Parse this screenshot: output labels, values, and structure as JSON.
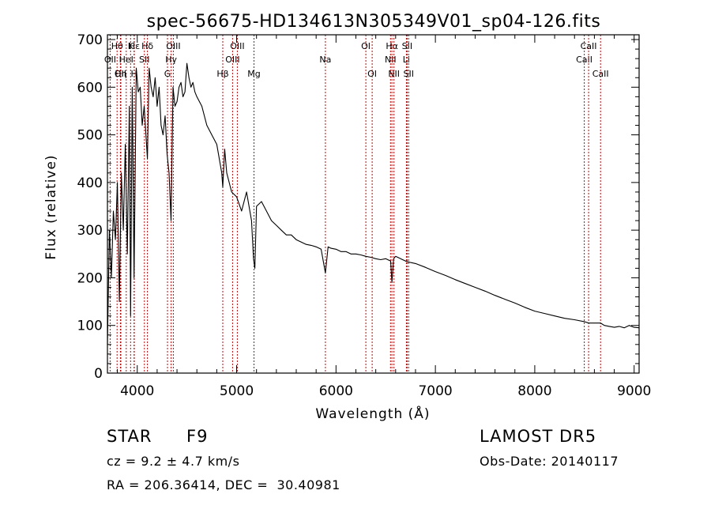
{
  "chart_data": {
    "type": "line",
    "title": "spec-56675-HD134613N305349V01_sp04-126.fits",
    "xlabel": "Wavelength (Å)",
    "ylabel": "Flux (relative)",
    "xlim": [
      3700,
      9050
    ],
    "ylim": [
      0,
      710
    ],
    "xticks": [
      4000,
      5000,
      6000,
      7000,
      8000,
      9000
    ],
    "yticks": [
      0,
      100,
      200,
      300,
      400,
      500,
      600,
      700
    ],
    "grid": false,
    "line_color": "#000000",
    "marker_color": "#cc0000",
    "spectrum": {
      "x": [
        3700,
        3720,
        3740,
        3760,
        3780,
        3800,
        3820,
        3840,
        3860,
        3880,
        3900,
        3920,
        3933,
        3950,
        3968,
        3990,
        4010,
        4030,
        4050,
        4070,
        4102,
        4120,
        4140,
        4160,
        4180,
        4200,
        4220,
        4240,
        4260,
        4280,
        4300,
        4320,
        4340,
        4360,
        4380,
        4400,
        4420,
        4440,
        4460,
        4480,
        4500,
        4520,
        4540,
        4560,
        4580,
        4600,
        4650,
        4700,
        4750,
        4800,
        4850,
        4861,
        4880,
        4900,
        4950,
        5000,
        5050,
        5100,
        5150,
        5170,
        5183,
        5200,
        5250,
        5300,
        5350,
        5400,
        5450,
        5500,
        5550,
        5600,
        5650,
        5700,
        5750,
        5800,
        5850,
        5893,
        5920,
        5950,
        6000,
        6050,
        6100,
        6150,
        6200,
        6250,
        6300,
        6350,
        6400,
        6450,
        6500,
        6550,
        6563,
        6580,
        6600,
        6650,
        6700,
        6750,
        6800,
        6900,
        7000,
        7100,
        7200,
        7300,
        7400,
        7500,
        7600,
        7700,
        7800,
        7900,
        8000,
        8100,
        8200,
        8300,
        8400,
        8498,
        8542,
        8600,
        8662,
        8700,
        8750,
        8800,
        8850,
        8900,
        8950,
        9000,
        9050
      ],
      "y": [
        60,
        300,
        200,
        340,
        280,
        400,
        150,
        420,
        300,
        480,
        250,
        560,
        120,
        600,
        200,
        640,
        590,
        600,
        520,
        560,
        450,
        640,
        600,
        580,
        620,
        560,
        600,
        520,
        500,
        540,
        460,
        420,
        320,
        600,
        560,
        570,
        600,
        610,
        580,
        590,
        650,
        620,
        600,
        610,
        590,
        580,
        560,
        520,
        500,
        480,
        420,
        390,
        470,
        420,
        380,
        370,
        340,
        380,
        320,
        240,
        220,
        350,
        360,
        340,
        320,
        310,
        300,
        290,
        290,
        280,
        275,
        270,
        268,
        265,
        260,
        210,
        265,
        262,
        260,
        255,
        255,
        250,
        250,
        248,
        245,
        243,
        240,
        238,
        240,
        235,
        190,
        240,
        245,
        240,
        235,
        232,
        230,
        222,
        213,
        205,
        196,
        188,
        180,
        172,
        163,
        155,
        147,
        138,
        130,
        125,
        120,
        115,
        112,
        108,
        105,
        105,
        105,
        100,
        98,
        96,
        98,
        95,
        100,
        96,
        95
      ]
    },
    "lines": [
      {
        "name": "OII",
        "x": 3727,
        "row": 2
      },
      {
        "name": "Hθ",
        "x": 3797,
        "row": 1
      },
      {
        "name": "OII",
        "x": 3830,
        "row": 3
      },
      {
        "name": "Hη",
        "x": 3835,
        "row": 3
      },
      {
        "name": "HeI",
        "x": 3889,
        "row": 2
      },
      {
        "name": "K",
        "x": 3933,
        "row": 1
      },
      {
        "name": "H",
        "x": 3968,
        "row": 3
      },
      {
        "name": "Hε",
        "x": 3970,
        "row": 1
      },
      {
        "name": "SII",
        "x": 4072,
        "row": 2
      },
      {
        "name": "Hδ",
        "x": 4102,
        "row": 1
      },
      {
        "name": "G",
        "x": 4304,
        "row": 3
      },
      {
        "name": "Hγ",
        "x": 4341,
        "row": 2
      },
      {
        "name": "OIII",
        "x": 4363,
        "row": 1
      },
      {
        "name": "Hβ",
        "x": 4861,
        "row": 3
      },
      {
        "name": "OIII",
        "x": 4959,
        "row": 2
      },
      {
        "name": "OIII",
        "x": 5007,
        "row": 1
      },
      {
        "name": "Mg",
        "x": 5175,
        "row": 3
      },
      {
        "name": "Na",
        "x": 5893,
        "row": 2
      },
      {
        "name": "OI",
        "x": 6300,
        "row": 1
      },
      {
        "name": "OI",
        "x": 6364,
        "row": 3
      },
      {
        "name": "NII",
        "x": 6548,
        "row": 2
      },
      {
        "name": "Hα",
        "x": 6563,
        "row": 1
      },
      {
        "name": "NII",
        "x": 6583,
        "row": 3
      },
      {
        "name": "Li",
        "x": 6708,
        "row": 2
      },
      {
        "name": "SII",
        "x": 6716,
        "row": 1
      },
      {
        "name": "SII",
        "x": 6731,
        "row": 3
      },
      {
        "name": "CaII",
        "x": 8498,
        "row": 2
      },
      {
        "name": "CaII",
        "x": 8542,
        "row": 1
      },
      {
        "name": "CaII",
        "x": 8662,
        "row": 3
      }
    ]
  },
  "info": {
    "object_type": "STAR",
    "subclass": "F9",
    "survey": "LAMOST DR5",
    "cz": "cz = 9.2 ± 4.7 km/s",
    "obs_date": "Obs-Date: 20140117",
    "coords": "RA = 206.36414, DEC =  30.40981"
  }
}
